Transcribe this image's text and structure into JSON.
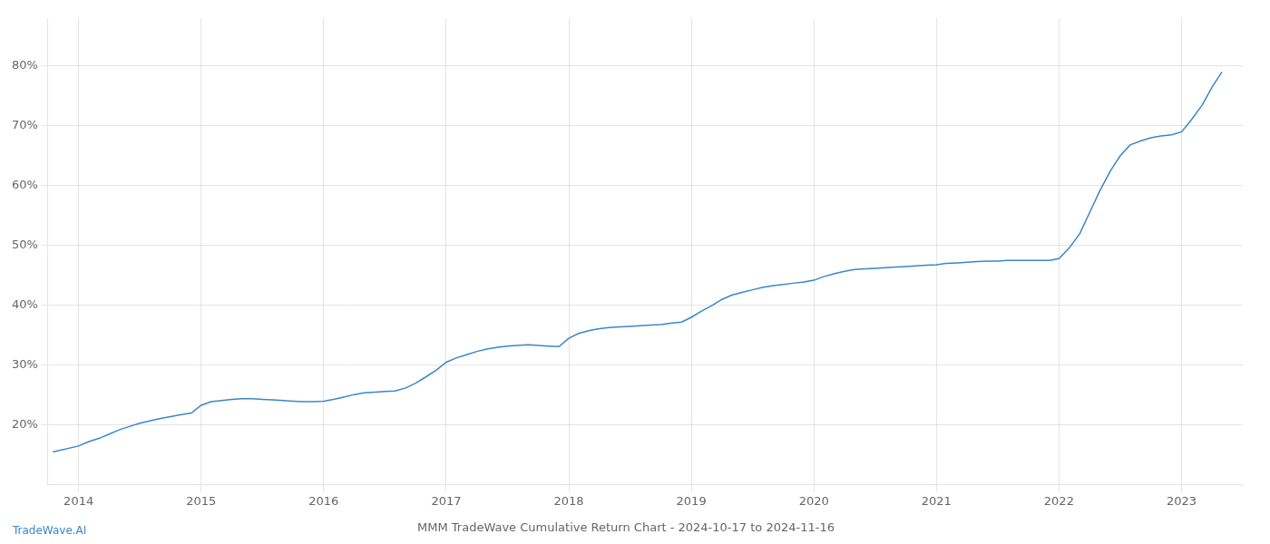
{
  "chart_data": {
    "type": "line",
    "title": "MMM TradeWave Cumulative Return Chart - 2024-10-17 to 2024-11-16",
    "annotations": [
      {
        "text": "TradeWave.AI"
      }
    ],
    "color": "#3a87c8",
    "grid": true,
    "xlim": [
      2013.75,
      2023.5
    ],
    "xticks": [
      2014,
      2015,
      2016,
      2017,
      2018,
      2019,
      2020,
      2021,
      2022,
      2023
    ],
    "ylim": [
      10,
      88
    ],
    "yticks": [
      {
        "value": 20,
        "label": "20%"
      },
      {
        "value": 30,
        "label": "30%"
      },
      {
        "value": 40,
        "label": "40%"
      },
      {
        "value": 50,
        "label": "50%"
      },
      {
        "value": 60,
        "label": "60%"
      },
      {
        "value": 70,
        "label": "70%"
      },
      {
        "value": 80,
        "label": "80%"
      }
    ],
    "x": [
      2013.79,
      2014.0,
      2014.08,
      2014.17,
      2014.25,
      2014.33,
      2014.42,
      2014.5,
      2014.58,
      2014.67,
      2014.75,
      2014.83,
      2014.92,
      2015.0,
      2015.08,
      2015.17,
      2015.25,
      2015.33,
      2015.42,
      2015.5,
      2015.58,
      2015.67,
      2015.75,
      2015.83,
      2015.92,
      2016.0,
      2016.08,
      2016.17,
      2016.25,
      2016.33,
      2016.42,
      2016.5,
      2016.58,
      2016.67,
      2016.75,
      2016.83,
      2016.92,
      2017.0,
      2017.08,
      2017.17,
      2017.25,
      2017.33,
      2017.42,
      2017.5,
      2017.58,
      2017.67,
      2017.75,
      2017.83,
      2017.92,
      2018.0,
      2018.08,
      2018.17,
      2018.25,
      2018.33,
      2018.42,
      2018.5,
      2018.58,
      2018.67,
      2018.75,
      2018.83,
      2018.92,
      2019.0,
      2019.08,
      2019.17,
      2019.25,
      2019.33,
      2019.42,
      2019.5,
      2019.58,
      2019.67,
      2019.75,
      2019.83,
      2019.92,
      2020.0,
      2020.08,
      2020.17,
      2020.25,
      2020.33,
      2020.42,
      2020.5,
      2020.58,
      2020.67,
      2020.75,
      2020.83,
      2020.92,
      2021.0,
      2021.08,
      2021.17,
      2021.25,
      2021.33,
      2021.42,
      2021.5,
      2021.58,
      2021.67,
      2021.75,
      2021.83,
      2021.92,
      2022.0,
      2022.08,
      2022.17,
      2022.25,
      2022.33,
      2022.42,
      2022.5,
      2022.58,
      2022.67,
      2022.75,
      2022.83,
      2022.92,
      2023.0,
      2023.08,
      2023.17,
      2023.25,
      2023.33
    ],
    "values": [
      15.5,
      16.5,
      17.2,
      17.8,
      18.5,
      19.2,
      19.8,
      20.3,
      20.7,
      21.1,
      21.4,
      21.7,
      22.0,
      23.3,
      23.9,
      24.1,
      24.3,
      24.4,
      24.4,
      24.3,
      24.2,
      24.1,
      24.0,
      23.9,
      23.9,
      24.0,
      24.3,
      24.7,
      25.1,
      25.4,
      25.5,
      25.6,
      25.7,
      26.2,
      27.0,
      28.0,
      29.2,
      30.5,
      31.2,
      31.8,
      32.3,
      32.7,
      33.0,
      33.2,
      33.3,
      33.4,
      33.3,
      33.2,
      33.1,
      34.5,
      35.3,
      35.8,
      36.1,
      36.3,
      36.4,
      36.5,
      36.6,
      36.7,
      36.8,
      37.0,
      37.2,
      38.0,
      39.0,
      40.0,
      41.0,
      41.7,
      42.2,
      42.6,
      43.0,
      43.3,
      43.5,
      43.7,
      43.9,
      44.2,
      44.8,
      45.3,
      45.7,
      46.0,
      46.1,
      46.2,
      46.3,
      46.4,
      46.5,
      46.6,
      46.7,
      46.8,
      47.0,
      47.1,
      47.2,
      47.3,
      47.4,
      47.4,
      47.5,
      47.5,
      47.5,
      47.5,
      47.5,
      47.8,
      49.5,
      52.0,
      55.5,
      59.0,
      62.5,
      65.0,
      66.8,
      67.5,
      68.0,
      68.3,
      68.5,
      69.0,
      71.0,
      73.5,
      76.5,
      79.0
    ]
  }
}
